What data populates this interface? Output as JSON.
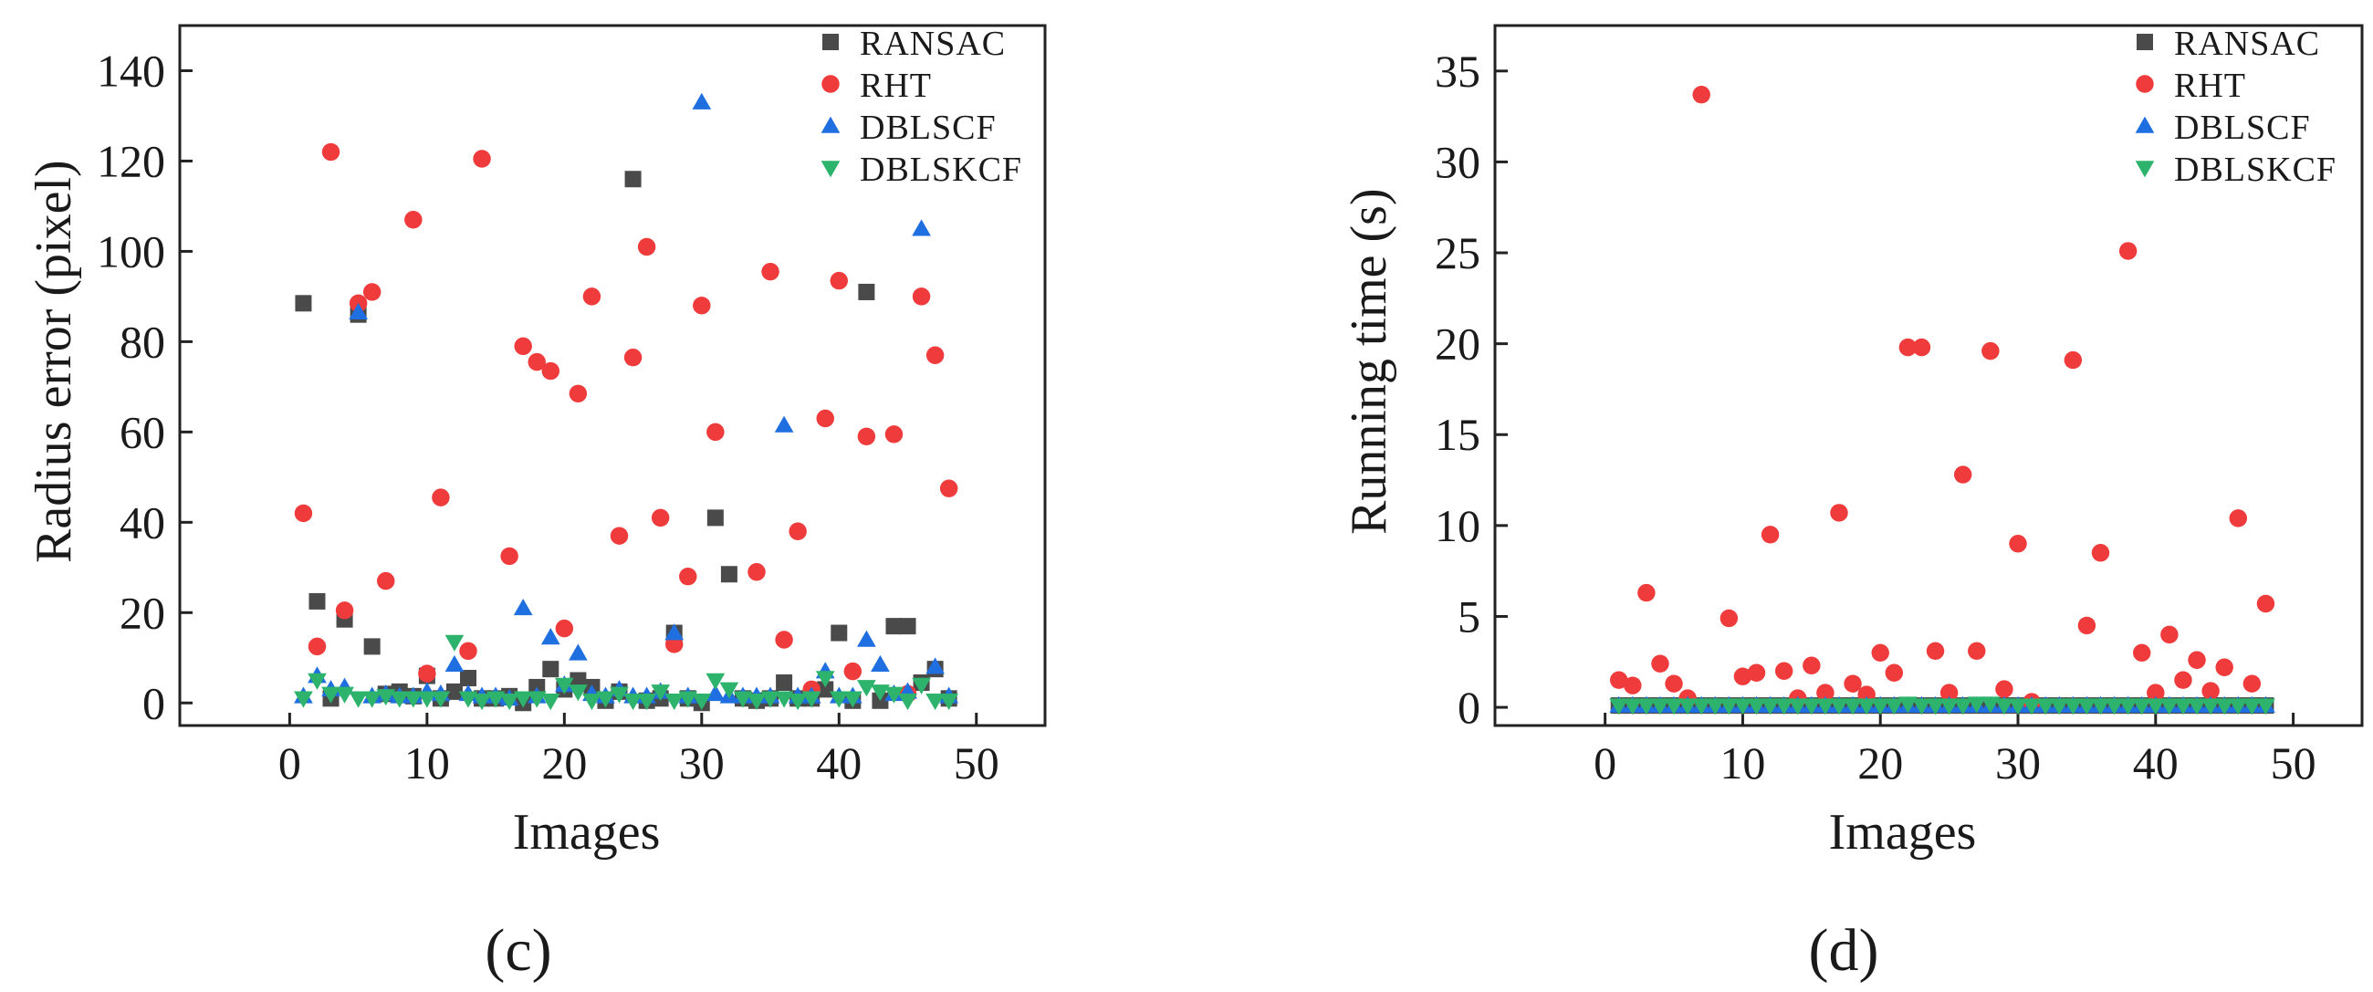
{
  "chart_data": [
    {
      "type": "scatter",
      "panel_label": "(c)",
      "xlabel": "Images",
      "ylabel": "Radius error (pixel)",
      "xlim": [
        -8,
        55
      ],
      "ylim": [
        -5,
        150
      ],
      "xticks": [
        0,
        10,
        20,
        30,
        40,
        50
      ],
      "yticks": [
        0,
        20,
        40,
        60,
        80,
        100,
        120,
        140
      ],
      "legend_position": "top-right",
      "series": [
        {
          "name": "RANSAC",
          "marker": "square",
          "color": "#4a4a4a",
          "x": [
            1,
            2,
            3,
            4,
            5,
            6,
            7,
            8,
            9,
            10,
            11,
            12,
            13,
            14,
            15,
            16,
            17,
            18,
            19,
            20,
            21,
            22,
            23,
            24,
            25,
            26,
            27,
            28,
            29,
            30,
            31,
            32,
            33,
            34,
            35,
            36,
            37,
            38,
            39,
            40,
            41,
            42,
            43,
            44,
            45,
            46,
            47,
            48
          ],
          "y": [
            88.5,
            22.5,
            1,
            18.5,
            86,
            12.5,
            2,
            2.5,
            1.5,
            6,
            1,
            2.5,
            5.5,
            1,
            1,
            1.5,
            0,
            3.5,
            7.5,
            3,
            5,
            3.5,
            0.5,
            2.5,
            116,
            0.5,
            1,
            15.5,
            1,
            0,
            41,
            28.5,
            1,
            0.5,
            1,
            4.5,
            1,
            1,
            3,
            15.5,
            0.5,
            91,
            0.5,
            17,
            17,
            4.5,
            7.5,
            1
          ]
        },
        {
          "name": "RHT",
          "marker": "circle",
          "color": "#ef3b3b",
          "x": [
            1,
            2,
            3,
            4,
            5,
            6,
            7,
            9,
            10,
            11,
            13,
            14,
            16,
            17,
            18,
            19,
            20,
            21,
            22,
            24,
            25,
            26,
            27,
            28,
            29,
            30,
            31,
            34,
            35,
            36,
            37,
            38,
            39,
            40,
            41,
            42,
            44,
            45,
            46,
            47,
            48
          ],
          "y": [
            42,
            12.5,
            122,
            20.5,
            88.5,
            91,
            27,
            107,
            6.5,
            45.5,
            11.5,
            120.5,
            32.5,
            79,
            75.5,
            73.5,
            16.5,
            68.5,
            90,
            37,
            76.5,
            101,
            41,
            13,
            28,
            88,
            60,
            29,
            95.5,
            14,
            38,
            3,
            63,
            93.5,
            7,
            59,
            59.5,
            2,
            90,
            77,
            47.5
          ]
        },
        {
          "name": "DBLSCF",
          "marker": "triangle-up",
          "color": "#1f6fe0",
          "x": [
            1,
            2,
            3,
            4,
            5,
            6,
            7,
            8,
            9,
            10,
            11,
            12,
            13,
            14,
            15,
            16,
            17,
            18,
            19,
            20,
            21,
            22,
            23,
            24,
            25,
            26,
            27,
            28,
            29,
            30,
            31,
            32,
            33,
            34,
            35,
            36,
            37,
            38,
            39,
            40,
            41,
            42,
            43,
            44,
            45,
            46,
            47,
            48
          ],
          "y": [
            1.5,
            6,
            3,
            3.5,
            86.5,
            1.5,
            2,
            1.5,
            1.5,
            2.5,
            2,
            8.5,
            2,
            1.5,
            1.5,
            1,
            21,
            1.5,
            14.5,
            4,
            11,
            2,
            1.5,
            3,
            1.5,
            1.5,
            2.5,
            15.5,
            1.5,
            133,
            2,
            1.5,
            1.5,
            1.5,
            1.5,
            61.5,
            1.5,
            1.5,
            7,
            1.5,
            1.5,
            14,
            8.5,
            2,
            2.5,
            105,
            8,
            1.5
          ]
        },
        {
          "name": "DBLSKCF",
          "marker": "triangle-down",
          "color": "#2db36b",
          "x": [
            1,
            2,
            3,
            4,
            5,
            6,
            7,
            8,
            9,
            10,
            11,
            12,
            13,
            14,
            15,
            16,
            17,
            18,
            19,
            20,
            21,
            22,
            23,
            24,
            25,
            26,
            27,
            28,
            29,
            30,
            31,
            32,
            33,
            34,
            35,
            36,
            37,
            38,
            39,
            40,
            41,
            42,
            43,
            44,
            45,
            46,
            47,
            48
          ],
          "y": [
            1,
            5,
            2,
            2,
            1,
            1,
            1.5,
            1,
            1,
            1,
            1,
            13.5,
            1,
            0.5,
            1,
            0.5,
            1,
            1,
            0.5,
            4,
            2.5,
            0.5,
            1,
            2,
            0.5,
            0.5,
            2.5,
            0.5,
            1,
            0.5,
            5,
            3,
            1,
            0.5,
            1,
            1,
            0.5,
            1,
            5.5,
            1,
            1,
            3.5,
            2.5,
            2,
            0.5,
            4,
            0.5,
            0.5
          ]
        }
      ]
    },
    {
      "type": "scatter",
      "panel_label": "(d)",
      "xlabel": "Images",
      "ylabel": "Running time (s)",
      "xlim": [
        -8,
        55
      ],
      "ylim": [
        -1,
        37.5
      ],
      "xticks": [
        0,
        10,
        20,
        30,
        40,
        50
      ],
      "yticks": [
        0,
        5,
        10,
        15,
        20,
        25,
        30,
        35
      ],
      "legend_position": "top-right",
      "series": [
        {
          "name": "RANSAC",
          "marker": "square",
          "color": "#4a4a4a",
          "x": [
            1,
            2,
            3,
            4,
            5,
            6,
            7,
            8,
            9,
            10,
            11,
            12,
            13,
            14,
            15,
            16,
            17,
            18,
            19,
            20,
            21,
            22,
            23,
            24,
            25,
            26,
            27,
            28,
            29,
            30,
            31,
            32,
            33,
            34,
            35,
            36,
            37,
            38,
            39,
            40,
            41,
            42,
            43,
            44,
            45,
            46,
            47,
            48
          ],
          "y": [
            0.1,
            0.1,
            0.1,
            0.1,
            0.1,
            0.1,
            0.1,
            0.1,
            0.1,
            0.1,
            0.1,
            0.1,
            0.1,
            0.1,
            0.1,
            0.1,
            0.1,
            0.1,
            0.1,
            0.1,
            0.1,
            0.1,
            0.1,
            0.1,
            0.1,
            0.1,
            0.1,
            0.1,
            0.1,
            0.1,
            0.1,
            0.1,
            0.1,
            0.1,
            0.1,
            0.1,
            0.1,
            0.1,
            0.1,
            0.1,
            0.1,
            0.1,
            0.1,
            0.1,
            0.1,
            0.1,
            0.1,
            0.1
          ]
        },
        {
          "name": "RHT",
          "marker": "circle",
          "color": "#ef3b3b",
          "x": [
            1,
            2,
            3,
            4,
            5,
            6,
            7,
            9,
            10,
            11,
            12,
            13,
            14,
            15,
            16,
            17,
            18,
            19,
            20,
            21,
            22,
            23,
            24,
            25,
            26,
            27,
            28,
            29,
            30,
            31,
            34,
            35,
            36,
            38,
            39,
            40,
            41,
            42,
            43,
            44,
            45,
            46,
            47,
            48
          ],
          "y": [
            1.5,
            1.2,
            6.3,
            2.4,
            1.3,
            0.5,
            33.7,
            4.9,
            1.7,
            1.9,
            9.5,
            2,
            0.5,
            2.3,
            0.8,
            10.7,
            1.3,
            0.7,
            3,
            1.9,
            19.8,
            19.8,
            3.1,
            0.8,
            12.8,
            3.1,
            19.6,
            1,
            9,
            0.3,
            19.1,
            4.5,
            8.5,
            25.1,
            3,
            0.8,
            4,
            1.5,
            2.6,
            0.9,
            2.2,
            10.4,
            1.3,
            5.7
          ]
        },
        {
          "name": "DBLSCF",
          "marker": "triangle-up",
          "color": "#1f6fe0",
          "x": [
            1,
            2,
            3,
            4,
            5,
            6,
            7,
            8,
            9,
            10,
            11,
            12,
            13,
            14,
            15,
            16,
            17,
            18,
            19,
            20,
            21,
            22,
            23,
            24,
            25,
            26,
            27,
            28,
            29,
            30,
            31,
            32,
            33,
            34,
            35,
            36,
            37,
            38,
            39,
            40,
            41,
            42,
            43,
            44,
            45,
            46,
            47,
            48
          ],
          "y": [
            0.1,
            0.1,
            0.1,
            0.1,
            0.1,
            0.1,
            0.1,
            0.1,
            0.1,
            0.1,
            0.1,
            0.1,
            0.1,
            0.1,
            0.1,
            0.1,
            0.1,
            0.1,
            0.1,
            0.1,
            0.1,
            0.1,
            0.1,
            0.1,
            0.1,
            0.1,
            0.1,
            0.1,
            0.1,
            0.1,
            0.1,
            0.1,
            0.1,
            0.1,
            0.1,
            0.1,
            0.1,
            0.1,
            0.1,
            0.1,
            0.1,
            0.1,
            0.1,
            0.1,
            0.1,
            0.1,
            0.1,
            0.1
          ]
        },
        {
          "name": "DBLSKCF",
          "marker": "triangle-down",
          "color": "#2db36b",
          "x": [
            1,
            2,
            3,
            4,
            5,
            6,
            7,
            8,
            9,
            10,
            11,
            12,
            13,
            14,
            15,
            16,
            17,
            18,
            19,
            20,
            21,
            22,
            23,
            24,
            25,
            26,
            27,
            28,
            29,
            30,
            31,
            32,
            33,
            34,
            35,
            36,
            37,
            38,
            39,
            40,
            41,
            42,
            43,
            44,
            45,
            46,
            47,
            48
          ],
          "y": [
            0.1,
            0.1,
            0.1,
            0.1,
            0.1,
            0.1,
            0.1,
            0.1,
            0.1,
            0.1,
            0.1,
            0.1,
            0.1,
            0.1,
            0.1,
            0.1,
            0.1,
            0.1,
            0.1,
            0.1,
            0.1,
            0.2,
            0.1,
            0.1,
            0.1,
            0.1,
            0.2,
            0.2,
            0.1,
            0.1,
            0.1,
            0.1,
            0.1,
            0.1,
            0.1,
            0.1,
            0.1,
            0.1,
            0.1,
            0.1,
            0.1,
            0.1,
            0.1,
            0.1,
            0.1,
            0.1,
            0.1,
            0.1
          ]
        }
      ]
    }
  ]
}
